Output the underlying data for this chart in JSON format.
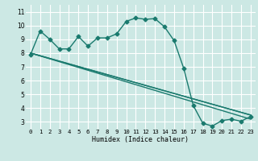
{
  "line1_x": [
    0,
    1,
    2,
    3,
    4,
    5,
    6,
    7,
    8,
    9,
    10,
    11,
    12,
    13,
    14,
    15,
    16,
    17,
    18,
    19,
    20,
    21,
    22,
    23
  ],
  "line1_y": [
    7.9,
    9.6,
    9.0,
    8.3,
    8.3,
    9.2,
    8.5,
    9.1,
    9.1,
    9.4,
    10.3,
    10.55,
    10.45,
    10.5,
    9.9,
    8.9,
    6.9,
    4.2,
    2.9,
    2.7,
    3.1,
    3.2,
    3.05,
    3.4
  ],
  "line2_x": [
    0,
    23
  ],
  "line2_y": [
    8.0,
    3.5
  ],
  "line3_x": [
    0,
    23
  ],
  "line3_y": [
    8.0,
    3.2
  ],
  "line4_x": [
    0,
    23
  ],
  "line4_y": [
    8.0,
    3.5
  ],
  "line_color": "#1a7a6e",
  "bg_color": "#cce8e4",
  "grid_color": "#ffffff",
  "xlabel": "Humidex (Indice chaleur)",
  "xlim": [
    -0.5,
    23.5
  ],
  "ylim": [
    2.5,
    11.5
  ],
  "xticks": [
    0,
    1,
    2,
    3,
    4,
    5,
    6,
    7,
    8,
    9,
    10,
    11,
    12,
    13,
    14,
    15,
    16,
    17,
    18,
    19,
    20,
    21,
    22,
    23
  ],
  "yticks": [
    3,
    4,
    5,
    6,
    7,
    8,
    9,
    10,
    11
  ],
  "marker": "D",
  "markersize": 2.5,
  "linewidth": 1.0,
  "xlabel_fontsize": 6.0,
  "tick_fontsize": 5.2
}
